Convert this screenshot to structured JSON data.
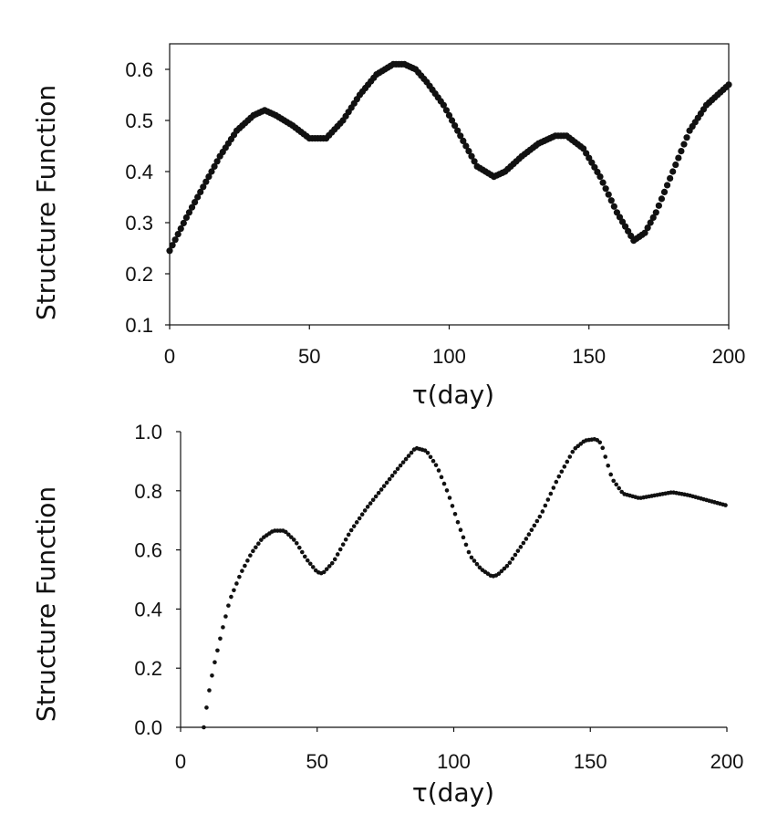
{
  "chart_data": [
    {
      "type": "scatter",
      "title": "",
      "xlabel": "τ(day)",
      "ylabel": "Structure Function",
      "xlim": [
        0,
        200
      ],
      "ylim": [
        0.1,
        0.65
      ],
      "xticks": [
        0,
        50,
        100,
        150,
        200
      ],
      "xtick_labels": [
        "0",
        "50",
        "100",
        "150",
        "200"
      ],
      "yticks": [
        0.1,
        0.2,
        0.3,
        0.4,
        0.5,
        0.6
      ],
      "ytick_labels": [
        "0.1",
        "0.2",
        "0.3",
        "0.4",
        "0.5",
        "0.6"
      ],
      "frame": "box",
      "grid": false,
      "series": [
        {
          "name": "Structure Function",
          "color": "#111111",
          "marker": "large-dot",
          "x": [
            0,
            6,
            12,
            18,
            24,
            30,
            34,
            38,
            44,
            50,
            56,
            62,
            68,
            74,
            80,
            84,
            88,
            92,
            98,
            104,
            110,
            116,
            120,
            126,
            132,
            138,
            142,
            148,
            154,
            160,
            166,
            170,
            174,
            180,
            186,
            192,
            200
          ],
          "curve": [
            0.245,
            0.31,
            0.37,
            0.43,
            0.48,
            0.51,
            0.52,
            0.51,
            0.49,
            0.465,
            0.465,
            0.5,
            0.55,
            0.59,
            0.61,
            0.61,
            0.6,
            0.575,
            0.53,
            0.47,
            0.41,
            0.39,
            0.4,
            0.43,
            0.455,
            0.47,
            0.47,
            0.445,
            0.39,
            0.32,
            0.265,
            0.28,
            0.32,
            0.4,
            0.48,
            0.53,
            0.57
          ]
        }
      ]
    },
    {
      "type": "scatter",
      "title": "",
      "xlabel": "τ(day)",
      "ylabel": "Structure Function",
      "xlim": [
        0,
        200
      ],
      "ylim": [
        0.0,
        1.0
      ],
      "xticks": [
        0,
        50,
        100,
        150,
        200
      ],
      "xtick_labels": [
        "0",
        "50",
        "100",
        "150",
        "200"
      ],
      "yticks": [
        0.0,
        0.2,
        0.4,
        0.6,
        0.8,
        1.0
      ],
      "ytick_labels": [
        "0.0",
        "0.2",
        "0.4",
        "0.6",
        "0.8",
        "1.0"
      ],
      "frame": "left-bottom",
      "grid": false,
      "series": [
        {
          "name": "Structure Function",
          "color": "#111111",
          "marker": "small-dot",
          "x": [
            8.5,
            10,
            12,
            15,
            18,
            22,
            26,
            30,
            34,
            38,
            42,
            46,
            50,
            52,
            56,
            62,
            68,
            74,
            80,
            86,
            90,
            94,
            98,
            102,
            106,
            110,
            114,
            116,
            120,
            126,
            132,
            138,
            144,
            148,
            152,
            154,
            158,
            162,
            168,
            174,
            180,
            186,
            192,
            196,
            200
          ],
          "curve": [
            0.0,
            0.1,
            0.2,
            0.32,
            0.43,
            0.52,
            0.59,
            0.64,
            0.665,
            0.665,
            0.63,
            0.57,
            0.525,
            0.52,
            0.56,
            0.66,
            0.74,
            0.81,
            0.88,
            0.945,
            0.935,
            0.88,
            0.79,
            0.68,
            0.58,
            0.535,
            0.51,
            0.515,
            0.55,
            0.63,
            0.72,
            0.84,
            0.94,
            0.97,
            0.975,
            0.96,
            0.84,
            0.79,
            0.775,
            0.785,
            0.795,
            0.785,
            0.77,
            0.76,
            0.75
          ]
        }
      ]
    }
  ]
}
